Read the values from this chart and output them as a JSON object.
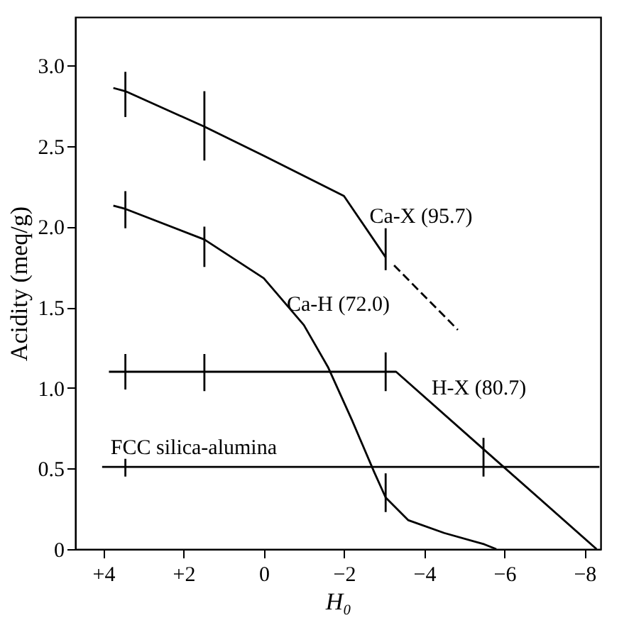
{
  "chart_data": {
    "type": "line",
    "xlabel": "H₀",
    "ylabel": "Acidity (meq/g)",
    "xlim": [
      4.7,
      -8.4
    ],
    "ylim": [
      0,
      3.3
    ],
    "xticks": [
      {
        "value": 4,
        "label": "+4"
      },
      {
        "value": 2,
        "label": "+2"
      },
      0,
      {
        "value": -2,
        "label": "−2"
      },
      {
        "value": -4,
        "label": "−4"
      },
      {
        "value": -6,
        "label": "−6"
      },
      {
        "value": -8,
        "label": "−8"
      }
    ],
    "yticks": [
      0,
      0.5,
      {
        "value": 1,
        "label": "1.0"
      },
      1.5,
      {
        "value": 2,
        "label": "2.0"
      },
      2.5,
      {
        "value": 3,
        "label": "3.0"
      }
    ],
    "grid": false,
    "legend": false,
    "marker": "none",
    "series": [
      {
        "name": "Ca-X (95.7)",
        "color": "#000000",
        "line_style": "solid",
        "x": [
          3.75,
          3.45,
          1.48,
          0,
          -2,
          -3.04
        ],
        "values": [
          2.86,
          2.84,
          2.62,
          2.44,
          2.19,
          1.81
        ],
        "errors": [
          null,
          [
            2.68,
            2.96
          ],
          [
            2.41,
            2.84
          ],
          null,
          null,
          [
            1.73,
            1.99
          ]
        ]
      },
      {
        "color": "#000000",
        "line_style": "dashed",
        "x": [
          -3.25,
          -4.84
        ],
        "values": [
          1.76,
          1.36
        ]
      },
      {
        "name": "Ca-H (72.0)",
        "color": "#000000",
        "line_style": "solid",
        "x": [
          3.75,
          3.45,
          1.48,
          0,
          -1,
          -1.6,
          -2.2,
          -2.75,
          -3.04,
          -3.6,
          -4.5,
          -5.5,
          -5.8
        ],
        "values": [
          2.13,
          2.11,
          1.92,
          1.68,
          1.39,
          1.13,
          0.8,
          0.48,
          0.32,
          0.18,
          0.1,
          0.03,
          0
        ],
        "errors": [
          null,
          [
            1.99,
            2.22
          ],
          [
            1.75,
            2.0
          ],
          null,
          null,
          null,
          null,
          null,
          [
            0.23,
            0.47
          ],
          null,
          null,
          null,
          null
        ]
      },
      {
        "name": "H-X (80.7)",
        "color": "#000000",
        "line_style": "solid",
        "x": [
          3.86,
          3.45,
          1.48,
          -3.04,
          -3.3,
          -5.48,
          -8.3
        ],
        "values": [
          1.1,
          1.1,
          1.1,
          1.1,
          1.1,
          0.62,
          0
        ],
        "errors": [
          null,
          [
            0.99,
            1.21
          ],
          [
            0.98,
            1.21
          ],
          [
            0.98,
            1.22
          ],
          null,
          [
            0.45,
            0.69
          ],
          null
        ]
      },
      {
        "name": "FCC silica-alumina",
        "color": "#000000",
        "line_style": "solid",
        "x": [
          4.03,
          3.45,
          -8.37
        ],
        "values": [
          0.51,
          0.51,
          0.51
        ],
        "errors": [
          null,
          [
            0.45,
            0.56
          ],
          null
        ]
      }
    ]
  }
}
